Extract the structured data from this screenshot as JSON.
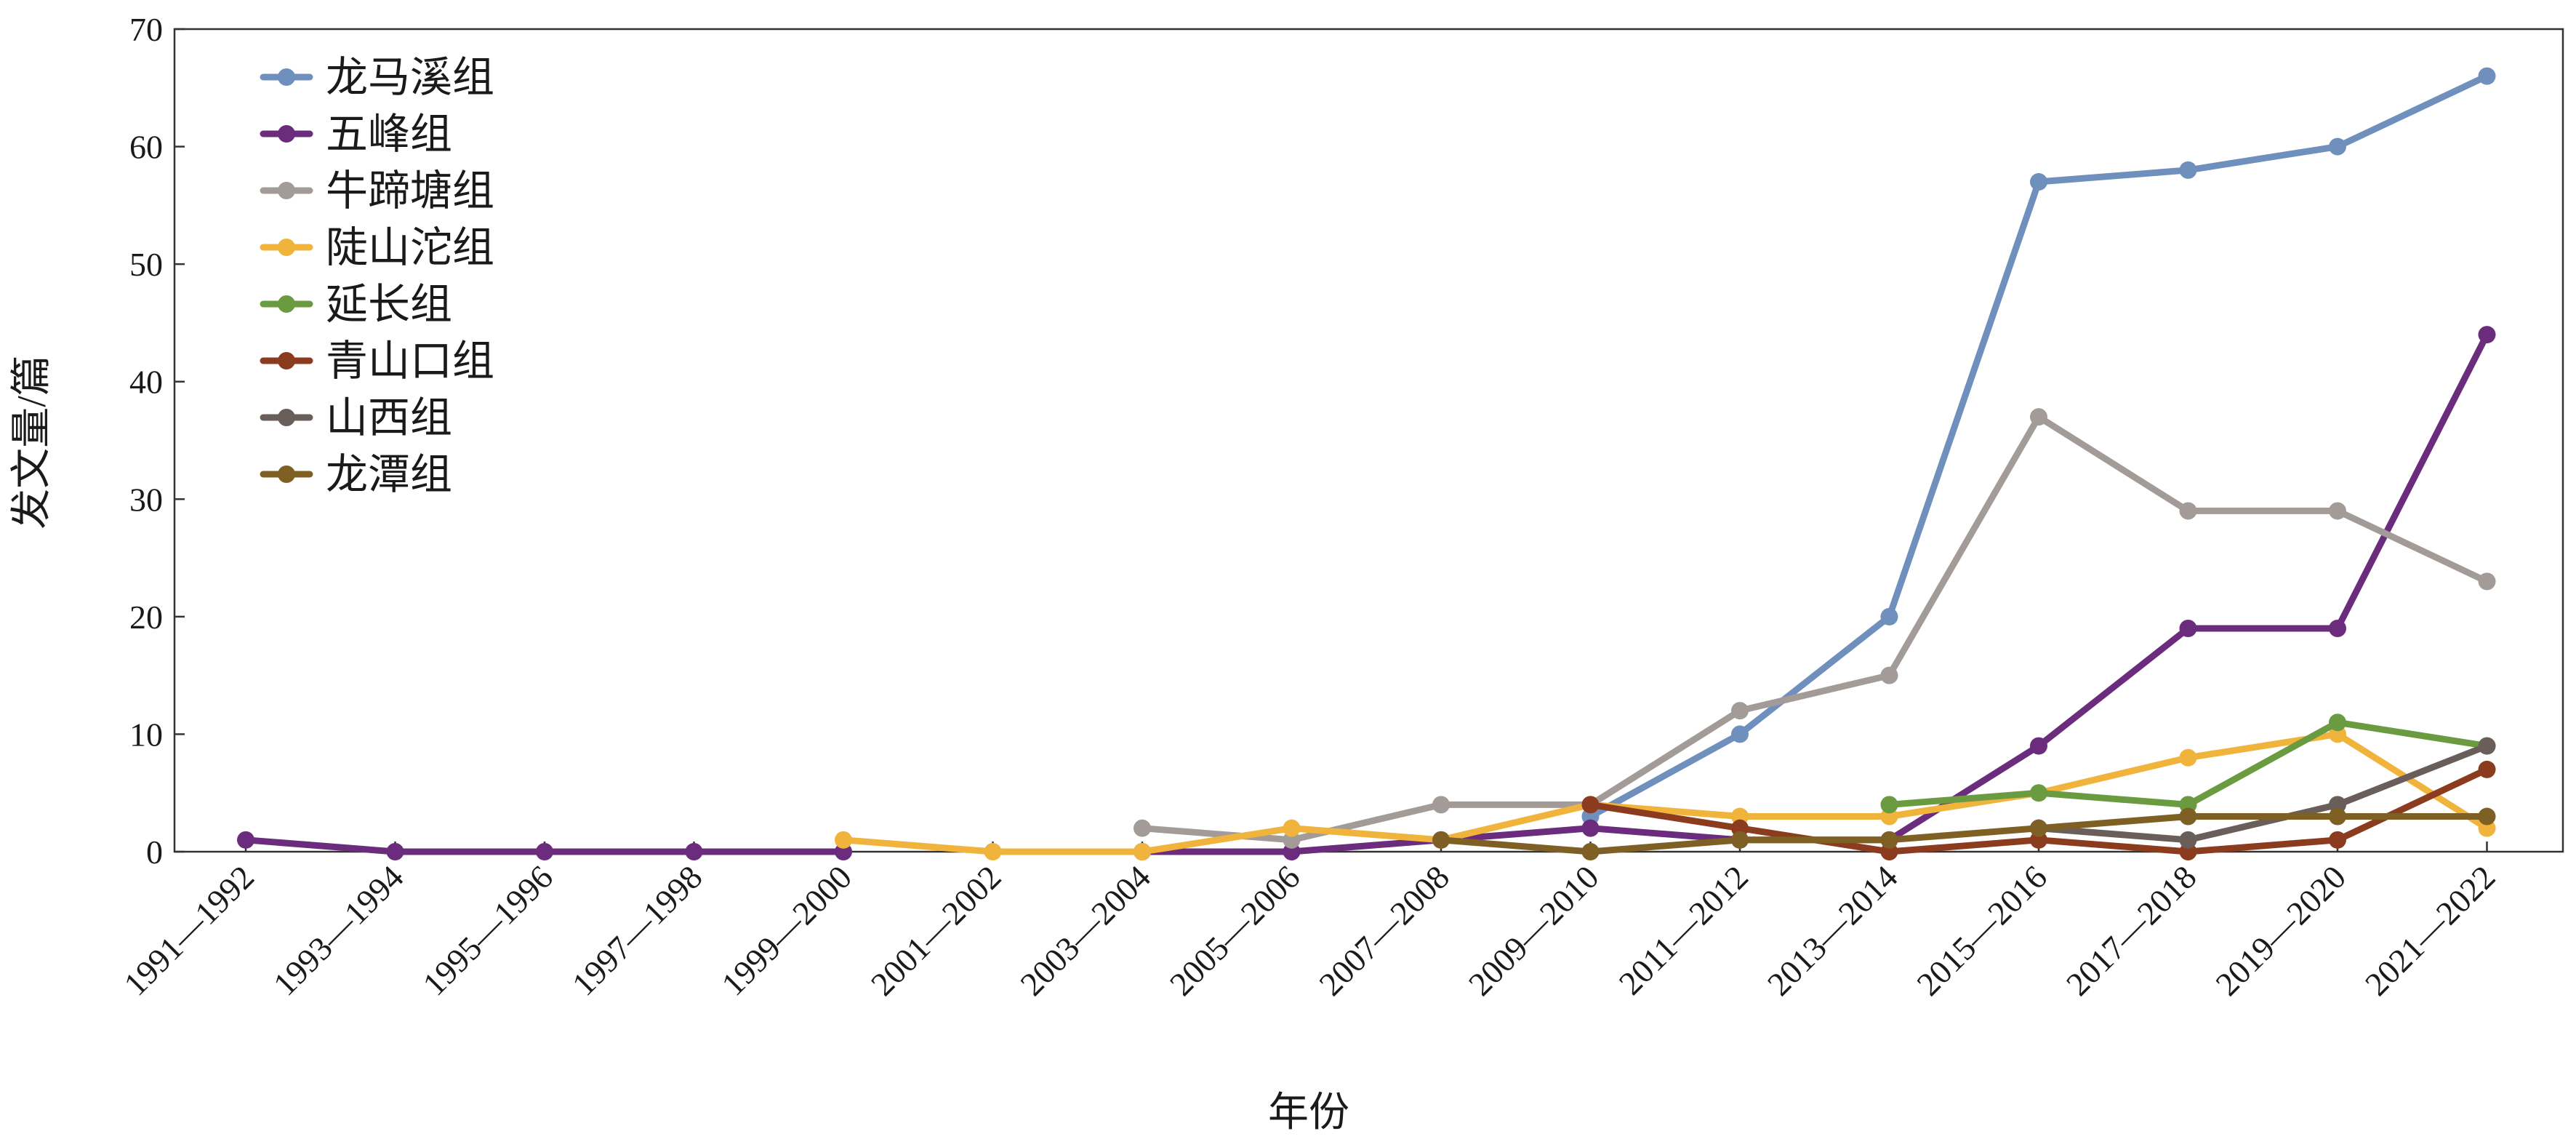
{
  "chart_data": {
    "type": "line",
    "title": "",
    "xlabel": "年份",
    "ylabel": "发文量/篇",
    "ylim": [
      0,
      70
    ],
    "yticks": [
      "0",
      "10",
      "20",
      "30",
      "40",
      "50",
      "60",
      "70"
    ],
    "grid": false,
    "legend_position": "top-left",
    "categories": [
      "1991—1992",
      "1993—1994",
      "1995—1996",
      "1997—1998",
      "1999—2000",
      "2001—2002",
      "2003—2004",
      "2005—2006",
      "2007—2008",
      "2009—2010",
      "2011—2012",
      "2013—2014",
      "2015—2016",
      "2017—2018",
      "2019—2020",
      "2021—2022"
    ],
    "series": [
      {
        "name": "龙马溪组",
        "color": "#6f8fbc",
        "values": [
          null,
          null,
          null,
          null,
          null,
          null,
          null,
          null,
          null,
          3,
          10,
          20,
          57,
          58,
          60,
          66
        ]
      },
      {
        "name": "五峰组",
        "color": "#6b2c7e",
        "values": [
          1,
          0,
          0,
          0,
          0,
          null,
          0,
          0,
          1,
          2,
          1,
          1,
          9,
          19,
          19,
          44
        ]
      },
      {
        "name": "牛蹄塘组",
        "color": "#a39b98",
        "values": [
          null,
          null,
          null,
          null,
          null,
          null,
          2,
          1,
          4,
          4,
          12,
          15,
          37,
          29,
          29,
          23
        ]
      },
      {
        "name": "陡山沱组",
        "color": "#f0b43c",
        "values": [
          null,
          null,
          null,
          null,
          1,
          0,
          0,
          2,
          1,
          4,
          3,
          3,
          5,
          8,
          10,
          2
        ]
      },
      {
        "name": "延长组",
        "color": "#6b9b40",
        "values": [
          null,
          null,
          null,
          null,
          null,
          null,
          null,
          null,
          null,
          null,
          null,
          4,
          5,
          4,
          11,
          9
        ]
      },
      {
        "name": "青山口组",
        "color": "#8c3c1e",
        "values": [
          null,
          null,
          null,
          null,
          null,
          null,
          null,
          null,
          null,
          4,
          2,
          0,
          1,
          0,
          1,
          7
        ]
      },
      {
        "name": "山西组",
        "color": "#6a5e5a",
        "values": [
          null,
          null,
          null,
          null,
          null,
          null,
          null,
          null,
          null,
          null,
          null,
          null,
          2,
          1,
          4,
          9
        ]
      },
      {
        "name": "龙潭组",
        "color": "#7f6024",
        "values": [
          null,
          null,
          null,
          null,
          null,
          null,
          null,
          null,
          1,
          0,
          1,
          1,
          2,
          3,
          3,
          3
        ]
      }
    ]
  }
}
